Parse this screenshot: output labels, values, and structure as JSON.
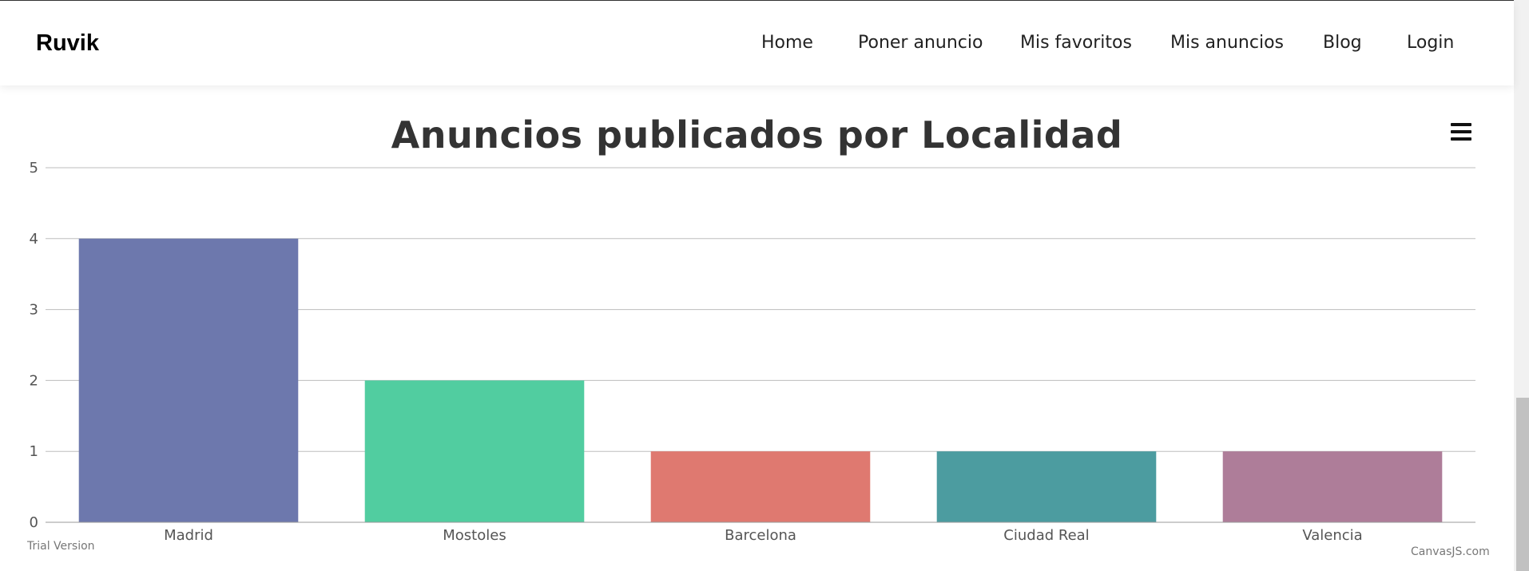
{
  "brand": "Ruvik",
  "nav": [
    "Home",
    "Poner anuncio",
    "Mis favoritos",
    "Mis anuncios",
    "Blog",
    "Login"
  ],
  "icons": {
    "chart_menu": "hamburger-menu-icon"
  },
  "footer": {
    "left": "Trial Version",
    "right": "CanvasJS.com"
  },
  "chart_data": {
    "type": "bar",
    "title": "Anuncios publicados por Localidad",
    "categories": [
      "Madrid",
      "Mostoles",
      "Barcelona",
      "Ciudad Real",
      "Valencia"
    ],
    "values": [
      4,
      2,
      1,
      1,
      1
    ],
    "colors": [
      "#6D78AD",
      "#51CDA0",
      "#DF7970",
      "#4C9CA0",
      "#AE7D99"
    ],
    "ylim": [
      0,
      5
    ],
    "yticks": [
      0,
      1,
      2,
      3,
      4,
      5
    ],
    "xlabel": "",
    "ylabel": "",
    "grid": true
  }
}
